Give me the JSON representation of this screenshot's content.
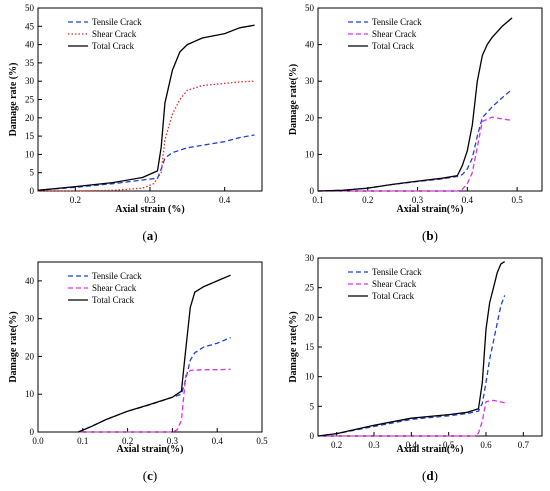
{
  "chart_data": [
    {
      "panel_label": "(a)",
      "type": "line",
      "xlabel": "Axial strain (%)",
      "ylabel": "Damage rate (%)",
      "xlim": [
        0.15,
        0.45
      ],
      "ylim": [
        0,
        50
      ],
      "xticks": [
        "0.2",
        "0.3",
        "0.4"
      ],
      "yticks": [
        "0",
        "5",
        "10",
        "15",
        "20",
        "25",
        "30",
        "35",
        "40",
        "45",
        "50"
      ],
      "legend": "top-left",
      "series": [
        {
          "name": "Tensile Crack",
          "color": "#1f3fd6",
          "dash": "dash",
          "x": [
            0.15,
            0.2,
            0.25,
            0.29,
            0.31,
            0.315,
            0.32,
            0.33,
            0.35,
            0.37,
            0.4,
            0.42,
            0.44
          ],
          "y": [
            0.2,
            1.0,
            2.0,
            3.0,
            3.5,
            6.0,
            9.0,
            10.5,
            11.8,
            12.5,
            13.5,
            14.6,
            15.3
          ]
        },
        {
          "name": "Shear Crack",
          "color": "#e0281e",
          "dash": "dot",
          "x": [
            0.15,
            0.2,
            0.25,
            0.29,
            0.305,
            0.315,
            0.32,
            0.33,
            0.34,
            0.35,
            0.37,
            0.4,
            0.42,
            0.44
          ],
          "y": [
            0,
            0,
            0.2,
            0.8,
            2.0,
            5.0,
            14.0,
            21.0,
            25.0,
            27.5,
            28.8,
            29.4,
            29.8,
            30.0
          ]
        },
        {
          "name": "Total Crack",
          "color": "#000000",
          "dash": "solid",
          "x": [
            0.15,
            0.2,
            0.25,
            0.29,
            0.31,
            0.315,
            0.32,
            0.33,
            0.34,
            0.35,
            0.37,
            0.4,
            0.42,
            0.44
          ],
          "y": [
            0.2,
            1.2,
            2.3,
            3.7,
            5.5,
            12.0,
            24.0,
            33.0,
            38.0,
            40.0,
            41.8,
            43.0,
            44.6,
            45.3
          ]
        }
      ]
    },
    {
      "panel_label": "(b)",
      "type": "line",
      "xlabel": "Axial strain(%)",
      "ylabel": "Damage rate(%)",
      "xlim": [
        0.1,
        0.55
      ],
      "ylim": [
        0,
        50
      ],
      "xticks": [
        "0.1",
        "0.2",
        "0.3",
        "0.4",
        "0.5"
      ],
      "yticks": [
        "0",
        "10",
        "20",
        "30",
        "40",
        "50"
      ],
      "legend": "top-left",
      "series": [
        {
          "name": "Tensile Crack",
          "color": "#1f3fd6",
          "dash": "dash",
          "x": [
            0.1,
            0.15,
            0.2,
            0.25,
            0.3,
            0.35,
            0.38,
            0.39,
            0.4,
            0.41,
            0.42,
            0.43,
            0.45,
            0.47,
            0.49
          ],
          "y": [
            0,
            0.2,
            0.8,
            1.8,
            2.6,
            3.3,
            4.0,
            4.5,
            6.0,
            9.0,
            15.0,
            20.0,
            23.0,
            25.5,
            27.8
          ]
        },
        {
          "name": "Shear Crack",
          "color": "#e030e0",
          "dash": "dash",
          "x": [
            0.1,
            0.3,
            0.38,
            0.39,
            0.4,
            0.41,
            0.42,
            0.43,
            0.45,
            0.47,
            0.49
          ],
          "y": [
            0,
            0,
            0,
            0.5,
            2.0,
            5.0,
            12.0,
            19.0,
            20.2,
            19.7,
            19.3
          ]
        },
        {
          "name": "Total Crack",
          "color": "#000000",
          "dash": "solid",
          "x": [
            0.1,
            0.15,
            0.2,
            0.25,
            0.3,
            0.35,
            0.38,
            0.39,
            0.4,
            0.41,
            0.42,
            0.43,
            0.44,
            0.45,
            0.47,
            0.49
          ],
          "y": [
            0,
            0.2,
            0.8,
            1.8,
            2.7,
            3.5,
            4.2,
            7.0,
            11.0,
            18.0,
            30.0,
            37.0,
            40.0,
            42.0,
            45.0,
            47.3
          ]
        }
      ]
    },
    {
      "panel_label": "(c)",
      "type": "line",
      "xlabel": "Axial strain(%)",
      "ylabel": "Damage rate(%)",
      "xlim": [
        0.0,
        0.5
      ],
      "ylim": [
        0,
        45
      ],
      "xticks": [
        "0.0",
        "0.1",
        "0.2",
        "0.3",
        "0.4",
        "0.5"
      ],
      "yticks": [
        "0",
        "10",
        "20",
        "30",
        "40"
      ],
      "legend": "top-left",
      "series": [
        {
          "name": "Tensile Crack",
          "color": "#1f3fd6",
          "dash": "dash",
          "x": [
            0.09,
            0.12,
            0.15,
            0.2,
            0.25,
            0.3,
            0.32,
            0.33,
            0.34,
            0.35,
            0.37,
            0.4,
            0.43
          ],
          "y": [
            0,
            1.5,
            3.2,
            5.5,
            7.2,
            9.2,
            10.0,
            14.0,
            19.0,
            21.0,
            22.5,
            23.5,
            25.0
          ]
        },
        {
          "name": "Shear Crack",
          "color": "#e030e0",
          "dash": "dash",
          "x": [
            0.09,
            0.2,
            0.3,
            0.31,
            0.32,
            0.325,
            0.33,
            0.34,
            0.37,
            0.4,
            0.43
          ],
          "y": [
            0,
            0,
            0,
            0.5,
            3.0,
            9.0,
            15.0,
            16.3,
            16.5,
            16.5,
            16.6
          ]
        },
        {
          "name": "Total Crack",
          "color": "#000000",
          "dash": "solid",
          "x": [
            0.09,
            0.12,
            0.15,
            0.2,
            0.25,
            0.3,
            0.32,
            0.33,
            0.34,
            0.35,
            0.37,
            0.4,
            0.43
          ],
          "y": [
            0,
            1.5,
            3.2,
            5.5,
            7.3,
            9.2,
            10.8,
            22.0,
            33.0,
            37.0,
            38.5,
            40.0,
            41.5
          ]
        }
      ]
    },
    {
      "panel_label": "(d)",
      "type": "line",
      "xlabel": "Axial strain(%)",
      "ylabel": "Damage rate(%)",
      "xlim": [
        0.15,
        0.75
      ],
      "ylim": [
        0,
        30
      ],
      "xticks": [
        "0.2",
        "0.3",
        "0.4",
        "0.5",
        "0.6",
        "0.7"
      ],
      "yticks": [
        "0",
        "5",
        "10",
        "15",
        "20",
        "25",
        "30"
      ],
      "legend": "top-left",
      "series": [
        {
          "name": "Tensile Crack",
          "color": "#1f3fd6",
          "dash": "dash",
          "x": [
            0.15,
            0.2,
            0.3,
            0.4,
            0.5,
            0.55,
            0.58,
            0.59,
            0.6,
            0.61,
            0.62,
            0.63,
            0.64,
            0.65
          ],
          "y": [
            0,
            0.4,
            1.6,
            2.8,
            3.4,
            3.8,
            4.2,
            5.5,
            9.0,
            13.0,
            16.0,
            19.0,
            22.0,
            23.7
          ]
        },
        {
          "name": "Shear Crack",
          "color": "#e030e0",
          "dash": "dash",
          "x": [
            0.15,
            0.4,
            0.57,
            0.58,
            0.59,
            0.6,
            0.62,
            0.65
          ],
          "y": [
            0,
            0,
            0,
            0.5,
            2.5,
            5.8,
            6.0,
            5.6
          ]
        },
        {
          "name": "Total Crack",
          "color": "#000000",
          "dash": "solid",
          "x": [
            0.15,
            0.2,
            0.3,
            0.4,
            0.5,
            0.55,
            0.58,
            0.59,
            0.6,
            0.61,
            0.62,
            0.63,
            0.64,
            0.65
          ],
          "y": [
            0,
            0.4,
            1.8,
            3.0,
            3.6,
            4.0,
            4.6,
            9.0,
            18.0,
            22.5,
            25.0,
            27.5,
            29.0,
            29.4
          ]
        }
      ]
    }
  ]
}
